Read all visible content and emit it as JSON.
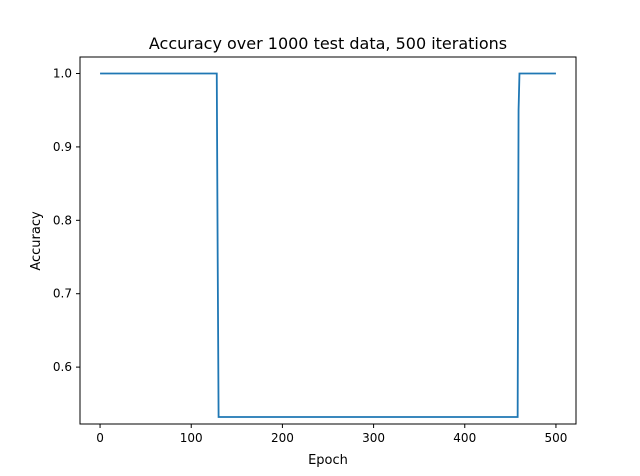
{
  "chart_data": {
    "type": "line",
    "title": "Accuracy over 1000 test data, 500 iterations",
    "xlabel": "Epoch",
    "ylabel": "Accuracy",
    "xlim": [
      -22,
      522
    ],
    "ylim": [
      0.5225,
      1.0225
    ],
    "xticks": [
      0,
      100,
      200,
      300,
      400,
      500
    ],
    "yticks": [
      0.6,
      0.7,
      0.8,
      0.9,
      1.0
    ],
    "xtick_labels": [
      "0",
      "100",
      "200",
      "300",
      "400",
      "500"
    ],
    "ytick_labels": [
      "0.6",
      "0.7",
      "0.8",
      "0.9",
      "1.0"
    ],
    "grid": false,
    "series": [
      {
        "color": "#1f77b4",
        "x": [
          0,
          128,
          129,
          130,
          458,
          459,
          460,
          500
        ],
        "y": [
          1.0,
          1.0,
          0.75,
          0.532,
          0.532,
          0.95,
          1.0,
          1.0
        ]
      }
    ]
  }
}
